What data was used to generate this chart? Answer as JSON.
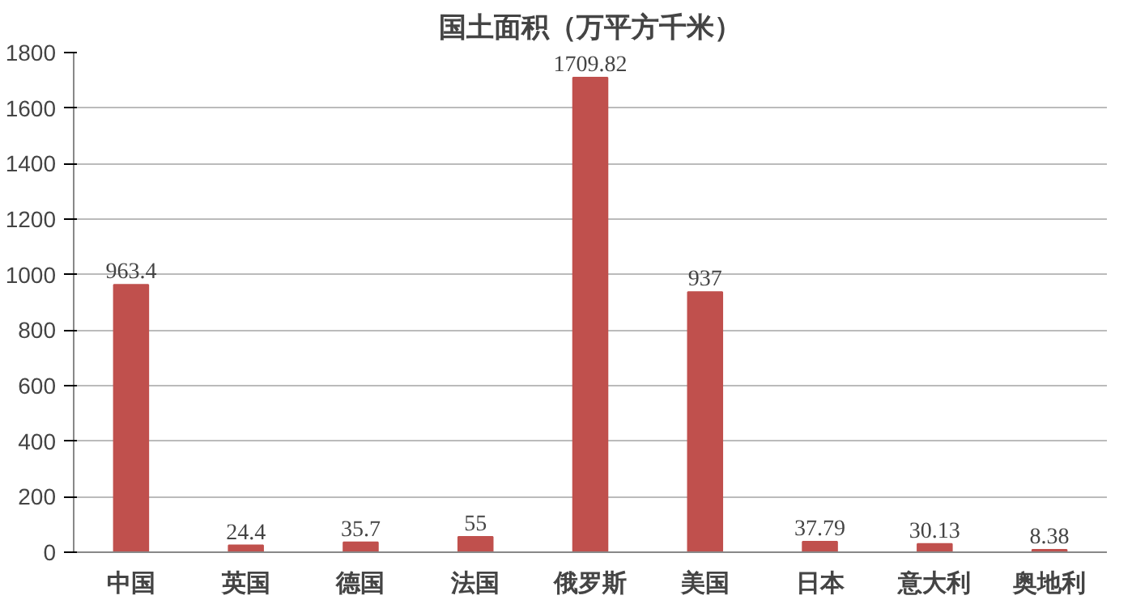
{
  "chart_data": {
    "type": "bar",
    "title": "国土面积（万平方千米）",
    "categories": [
      "中国",
      "英国",
      "德国",
      "法国",
      "俄罗斯",
      "美国",
      "日本",
      "意大利",
      "奥地利"
    ],
    "values": [
      963.4,
      24.4,
      35.7,
      55,
      1709.82,
      937,
      37.79,
      30.13,
      8.38
    ],
    "color": "#c0504d",
    "ylim": [
      0,
      1800
    ],
    "yticks": [
      0,
      200,
      400,
      600,
      800,
      1000,
      1200,
      1400,
      1600,
      1800
    ],
    "grid": "y",
    "data_labels": true
  }
}
